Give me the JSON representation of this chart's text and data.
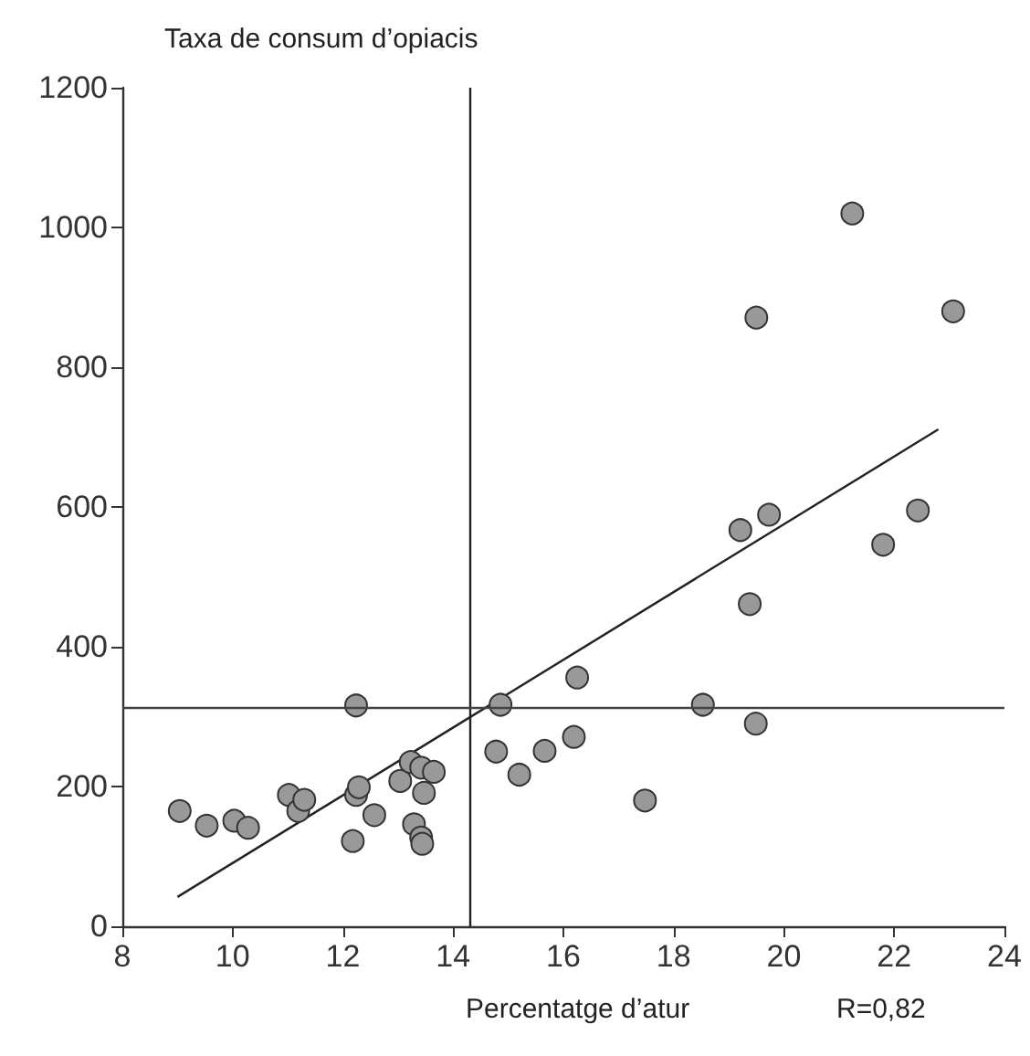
{
  "chart_data": {
    "type": "scatter",
    "ylabel": "Taxa de consum d’opiacis",
    "xlabel": "Percentatge d’atur",
    "annotations": [
      "R=0,82"
    ],
    "xlim": [
      8,
      24
    ],
    "xticks": [
      8,
      10,
      12,
      14,
      16,
      18,
      20,
      22,
      24
    ],
    "ylim": [
      0,
      1200
    ],
    "yticks": [
      0,
      200,
      400,
      600,
      800,
      1000,
      1200
    ],
    "grid": false,
    "series": [
      {
        "color": "#999999",
        "marker": "circle",
        "x": [
          9.04,
          9.53,
          10.03,
          10.28,
          11.02,
          11.19,
          11.3,
          12.24,
          12.18,
          12.24,
          12.29,
          12.57,
          13.04,
          13.23,
          13.42,
          13.65,
          13.47,
          13.29,
          13.42,
          13.44,
          14.86,
          14.78,
          15.2,
          15.66,
          16.19,
          16.25,
          17.48,
          18.53,
          19.49,
          19.38,
          19.21,
          19.73,
          21.24,
          19.5,
          23.07,
          22.43,
          21.8
        ],
        "values": [
          165,
          144,
          151,
          141,
          188,
          165,
          181,
          316,
          122,
          188,
          199,
          159,
          208,
          235,
          227,
          221,
          191,
          146,
          127,
          118,
          317,
          250,
          217,
          251,
          271,
          356,
          180,
          317,
          290,
          461,
          567,
          589,
          1020,
          871,
          880,
          595,
          546
        ]
      },
      {
        "type": "line",
        "marker": "none",
        "color": "#222222",
        "x": [
          9,
          22.8
        ],
        "values": [
          42,
          711
        ]
      }
    ],
    "ref_lines": [
      {
        "axis": "x",
        "value": 14.3,
        "color": "#222222"
      },
      {
        "axis": "y",
        "value": 314,
        "color": "#444444"
      }
    ]
  }
}
